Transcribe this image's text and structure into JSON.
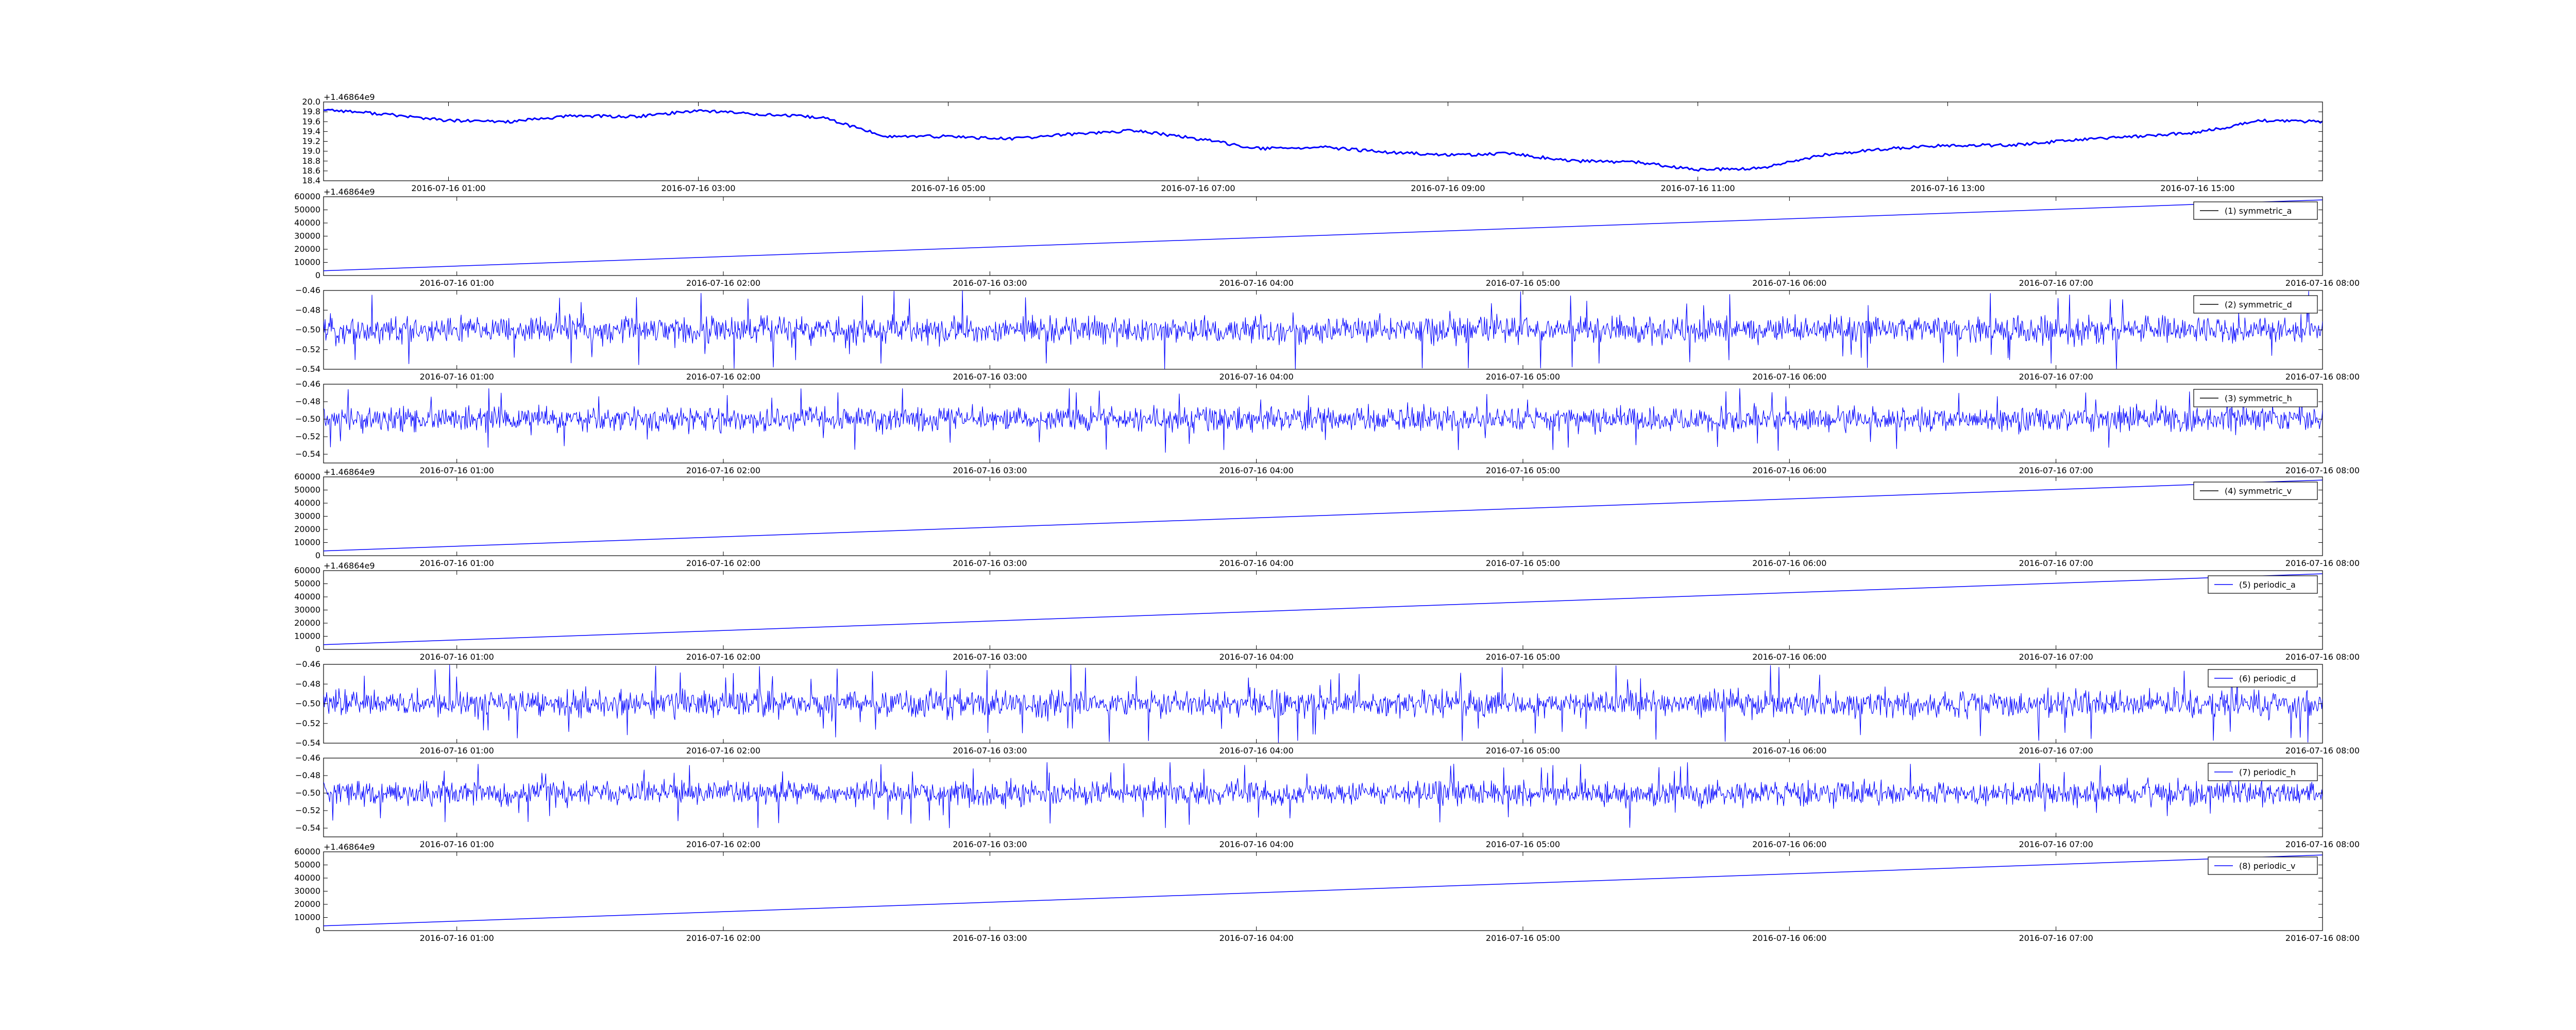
{
  "figure": {
    "background": "#ffffff"
  },
  "chart_data": [
    {
      "type": "line",
      "title": "",
      "xlabel": "",
      "ylabel": "",
      "x_type": "datetime",
      "xlim": [
        "2016-07-16 00:00",
        "2016-07-16 16:00"
      ],
      "ylim": [
        18.4,
        20.0
      ],
      "yticks": [
        "18.4",
        "18.6",
        "18.8",
        "19.0",
        "19.2",
        "19.4",
        "19.6",
        "19.8",
        "20.0"
      ],
      "xticks": [
        "2016-07-16 01:00",
        "2016-07-16 03:00",
        "2016-07-16 05:00",
        "2016-07-16 07:00",
        "2016-07-16 09:00",
        "2016-07-16 11:00",
        "2016-07-16 13:00",
        "2016-07-16 15:00"
      ],
      "y_offset_text": "+1.46864e9",
      "legend": null,
      "color": "#0000ff",
      "grid": false,
      "series": [
        {
          "x": [
            "2016-07-16 00:00",
            "2016-07-16 00:30",
            "2016-07-16 01:00",
            "2016-07-16 01:30",
            "2016-07-16 02:00",
            "2016-07-16 02:30",
            "2016-07-16 03:00",
            "2016-07-16 03:30",
            "2016-07-16 04:00",
            "2016-07-16 04:30",
            "2016-07-16 05:00",
            "2016-07-16 05:30",
            "2016-07-16 06:00",
            "2016-07-16 06:30",
            "2016-07-16 07:00",
            "2016-07-16 07:30",
            "2016-07-16 08:00",
            "2016-07-16 08:30",
            "2016-07-16 09:00",
            "2016-07-16 09:30",
            "2016-07-16 10:00",
            "2016-07-16 10:30",
            "2016-07-16 11:00",
            "2016-07-16 11:30",
            "2016-07-16 12:00",
            "2016-07-16 12:30",
            "2016-07-16 13:00",
            "2016-07-16 13:30",
            "2016-07-16 14:00",
            "2016-07-16 14:30",
            "2016-07-16 15:00",
            "2016-07-16 15:30",
            "2016-07-16 16:00"
          ],
          "y": [
            19.85,
            19.75,
            19.62,
            19.6,
            19.72,
            19.7,
            19.83,
            19.75,
            19.68,
            19.3,
            19.3,
            19.25,
            19.35,
            19.42,
            19.25,
            19.05,
            19.08,
            18.98,
            18.92,
            18.95,
            18.8,
            18.78,
            18.62,
            18.65,
            18.92,
            19.05,
            19.12,
            19.12,
            19.22,
            19.3,
            19.38,
            19.62,
            19.6
          ]
        }
      ]
    },
    {
      "type": "line",
      "title": "",
      "xlabel": "",
      "ylabel": "",
      "x_type": "datetime",
      "xlim": [
        "2016-07-16 00:30",
        "2016-07-16 08:00"
      ],
      "ylim": [
        0,
        60000
      ],
      "yticks": [
        "0",
        "10000",
        "20000",
        "30000",
        "40000",
        "50000",
        "60000"
      ],
      "xticks": [
        "2016-07-16 01:00",
        "2016-07-16 02:00",
        "2016-07-16 03:00",
        "2016-07-16 04:00",
        "2016-07-16 05:00",
        "2016-07-16 06:00",
        "2016-07-16 07:00",
        "2016-07-16 08:00"
      ],
      "y_offset_text": "+1.46864e9",
      "legend": {
        "label": "(1) symmetric_a",
        "loc": "upper right",
        "line_color": "#000000"
      },
      "color": "#0000ff",
      "grid": false,
      "series": [
        {
          "name": "(1) symmetric_a",
          "x": [
            "2016-07-16 00:30",
            "2016-07-16 08:00"
          ],
          "y": [
            3600,
            57600
          ]
        }
      ]
    },
    {
      "type": "line",
      "title": "",
      "xlabel": "",
      "ylabel": "",
      "x_type": "datetime",
      "xlim": [
        "2016-07-16 00:30",
        "2016-07-16 08:00"
      ],
      "ylim": [
        -0.54,
        -0.46
      ],
      "yticks": [
        "−0.54",
        "−0.52",
        "−0.50",
        "−0.48",
        "−0.46"
      ],
      "xticks": [
        "2016-07-16 01:00",
        "2016-07-16 02:00",
        "2016-07-16 03:00",
        "2016-07-16 04:00",
        "2016-07-16 05:00",
        "2016-07-16 06:00",
        "2016-07-16 07:00",
        "2016-07-16 08:00"
      ],
      "legend": {
        "label": "(2) symmetric_d",
        "loc": "upper right",
        "line_color": "#000000"
      },
      "color": "#0000ff",
      "grid": false,
      "noise": {
        "center": -0.5,
        "typical_min": -0.52,
        "typical_max": -0.48,
        "peak_min": -0.54,
        "peak_max": -0.46
      },
      "series": [
        {
          "name": "(2) symmetric_d"
        }
      ]
    },
    {
      "type": "line",
      "title": "",
      "xlabel": "",
      "ylabel": "",
      "x_type": "datetime",
      "xlim": [
        "2016-07-16 00:30",
        "2016-07-16 08:00"
      ],
      "ylim": [
        -0.55,
        -0.46
      ],
      "yticks": [
        "−0.54",
        "−0.52",
        "−0.50",
        "−0.48",
        "−0.46"
      ],
      "xticks": [
        "2016-07-16 01:00",
        "2016-07-16 02:00",
        "2016-07-16 03:00",
        "2016-07-16 04:00",
        "2016-07-16 05:00",
        "2016-07-16 06:00",
        "2016-07-16 07:00",
        "2016-07-16 08:00"
      ],
      "legend": {
        "label": "(3) symmetric_h",
        "loc": "upper right",
        "line_color": "#000000"
      },
      "color": "#0000ff",
      "grid": false,
      "noise": {
        "center": -0.5,
        "typical_min": -0.52,
        "typical_max": -0.48,
        "peak_min": -0.54,
        "peak_max": -0.465
      },
      "series": [
        {
          "name": "(3) symmetric_h"
        }
      ]
    },
    {
      "type": "line",
      "title": "",
      "xlabel": "",
      "ylabel": "",
      "x_type": "datetime",
      "xlim": [
        "2016-07-16 00:30",
        "2016-07-16 08:00"
      ],
      "ylim": [
        0,
        60000
      ],
      "yticks": [
        "0",
        "10000",
        "20000",
        "30000",
        "40000",
        "50000",
        "60000"
      ],
      "xticks": [
        "2016-07-16 01:00",
        "2016-07-16 02:00",
        "2016-07-16 03:00",
        "2016-07-16 04:00",
        "2016-07-16 05:00",
        "2016-07-16 06:00",
        "2016-07-16 07:00",
        "2016-07-16 08:00"
      ],
      "y_offset_text": "+1.46864e9",
      "legend": {
        "label": "(4) symmetric_v",
        "loc": "upper right",
        "line_color": "#000000"
      },
      "color": "#0000ff",
      "grid": false,
      "series": [
        {
          "name": "(4) symmetric_v",
          "x": [
            "2016-07-16 00:30",
            "2016-07-16 08:00"
          ],
          "y": [
            3600,
            57600
          ]
        }
      ]
    },
    {
      "type": "line",
      "title": "",
      "xlabel": "",
      "ylabel": "",
      "x_type": "datetime",
      "xlim": [
        "2016-07-16 00:30",
        "2016-07-16 08:00"
      ],
      "ylim": [
        0,
        60000
      ],
      "yticks": [
        "0",
        "10000",
        "20000",
        "30000",
        "40000",
        "50000",
        "60000"
      ],
      "xticks": [
        "2016-07-16 01:00",
        "2016-07-16 02:00",
        "2016-07-16 03:00",
        "2016-07-16 04:00",
        "2016-07-16 05:00",
        "2016-07-16 06:00",
        "2016-07-16 07:00",
        "2016-07-16 08:00"
      ],
      "y_offset_text": "+1.46864e9",
      "legend": {
        "label": "(5) periodic_a",
        "loc": "upper right",
        "line_color": "#0000ff"
      },
      "color": "#0000ff",
      "grid": false,
      "series": [
        {
          "name": "(5) periodic_a",
          "x": [
            "2016-07-16 00:30",
            "2016-07-16 08:00"
          ],
          "y": [
            3600,
            57600
          ]
        }
      ]
    },
    {
      "type": "line",
      "title": "",
      "xlabel": "",
      "ylabel": "",
      "x_type": "datetime",
      "xlim": [
        "2016-07-16 00:30",
        "2016-07-16 08:00"
      ],
      "ylim": [
        -0.54,
        -0.46
      ],
      "yticks": [
        "−0.54",
        "−0.52",
        "−0.50",
        "−0.48",
        "−0.46"
      ],
      "xticks": [
        "2016-07-16 01:00",
        "2016-07-16 02:00",
        "2016-07-16 03:00",
        "2016-07-16 04:00",
        "2016-07-16 05:00",
        "2016-07-16 06:00",
        "2016-07-16 07:00",
        "2016-07-16 08:00"
      ],
      "legend": {
        "label": "(6) periodic_d",
        "loc": "upper right",
        "line_color": "#0000ff"
      },
      "color": "#0000ff",
      "grid": false,
      "noise": {
        "center": -0.5,
        "typical_min": -0.52,
        "typical_max": -0.48,
        "peak_min": -0.54,
        "peak_max": -0.46
      },
      "series": [
        {
          "name": "(6) periodic_d"
        }
      ]
    },
    {
      "type": "line",
      "title": "",
      "xlabel": "",
      "ylabel": "",
      "x_type": "datetime",
      "xlim": [
        "2016-07-16 00:30",
        "2016-07-16 08:00"
      ],
      "ylim": [
        -0.55,
        -0.46
      ],
      "yticks": [
        "−0.54",
        "−0.52",
        "−0.50",
        "−0.48",
        "−0.46"
      ],
      "xticks": [
        "2016-07-16 01:00",
        "2016-07-16 02:00",
        "2016-07-16 03:00",
        "2016-07-16 04:00",
        "2016-07-16 05:00",
        "2016-07-16 06:00",
        "2016-07-16 07:00",
        "2016-07-16 08:00"
      ],
      "legend": {
        "label": "(7) periodic_h",
        "loc": "upper right",
        "line_color": "#0000ff"
      },
      "color": "#0000ff",
      "grid": false,
      "noise": {
        "center": -0.5,
        "typical_min": -0.52,
        "typical_max": -0.48,
        "peak_min": -0.54,
        "peak_max": -0.465
      },
      "series": [
        {
          "name": "(7) periodic_h"
        }
      ]
    },
    {
      "type": "line",
      "title": "",
      "xlabel": "",
      "ylabel": "",
      "x_type": "datetime",
      "xlim": [
        "2016-07-16 00:30",
        "2016-07-16 08:00"
      ],
      "ylim": [
        0,
        60000
      ],
      "yticks": [
        "0",
        "10000",
        "20000",
        "30000",
        "40000",
        "50000",
        "60000"
      ],
      "xticks": [
        "2016-07-16 01:00",
        "2016-07-16 02:00",
        "2016-07-16 03:00",
        "2016-07-16 04:00",
        "2016-07-16 05:00",
        "2016-07-16 06:00",
        "2016-07-16 07:00",
        "2016-07-16 08:00"
      ],
      "y_offset_text": "+1.46864e9",
      "legend": {
        "label": "(8) periodic_v",
        "loc": "upper right",
        "line_color": "#0000ff"
      },
      "color": "#0000ff",
      "grid": false,
      "series": [
        {
          "name": "(8) periodic_v",
          "x": [
            "2016-07-16 00:30",
            "2016-07-16 08:00"
          ],
          "y": [
            3600,
            57600
          ]
        }
      ]
    }
  ]
}
